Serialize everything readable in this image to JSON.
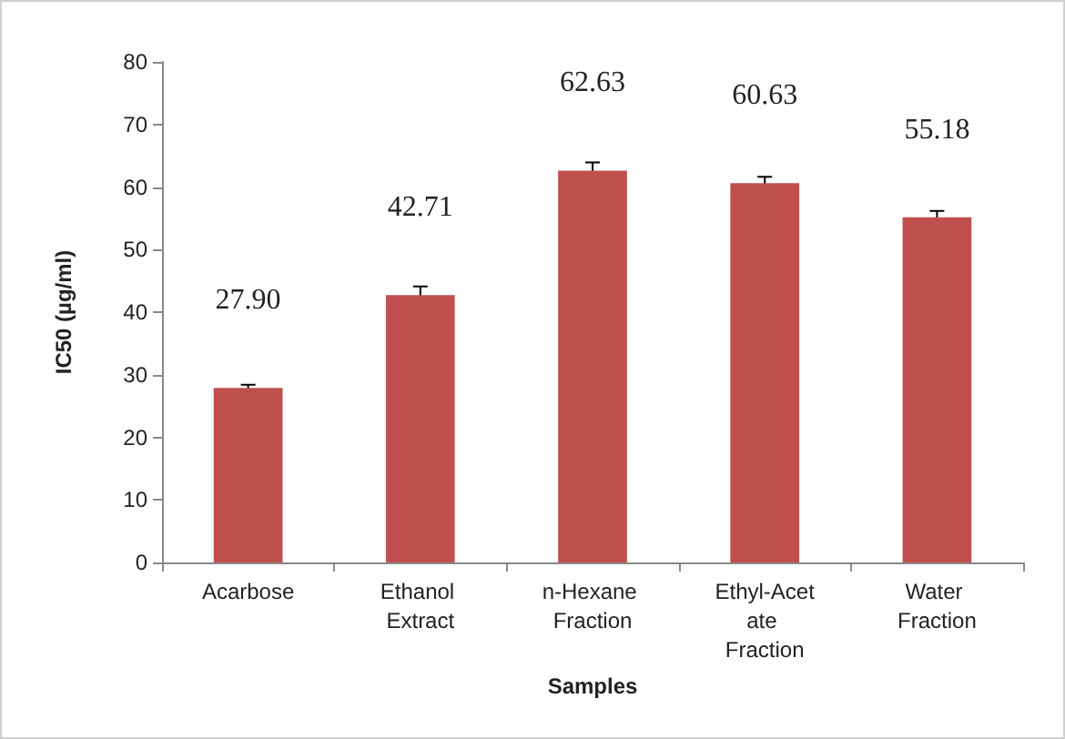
{
  "chart_data": {
    "type": "bar",
    "xlabel": "Samples",
    "ylabel": "IC50 (µg/ml)",
    "categories": [
      "Acarbose",
      "Ethanol Extract",
      "n-Hexane Fraction",
      "Ethyl-Acetate Fraction",
      "Water Fraction"
    ],
    "values": [
      27.9,
      42.71,
      62.63,
      60.63,
      55.18
    ],
    "errors": [
      0.5,
      1.4,
      1.3,
      1.0,
      1.0
    ],
    "color": "#c0504d",
    "ylim": [
      0,
      80
    ],
    "yticks": [
      0,
      10,
      20,
      30,
      40,
      50,
      60,
      70,
      80
    ],
    "value_labels": [
      "27.90",
      "42.71",
      "62.63",
      "60.63",
      "55.18"
    ],
    "grid": false
  }
}
